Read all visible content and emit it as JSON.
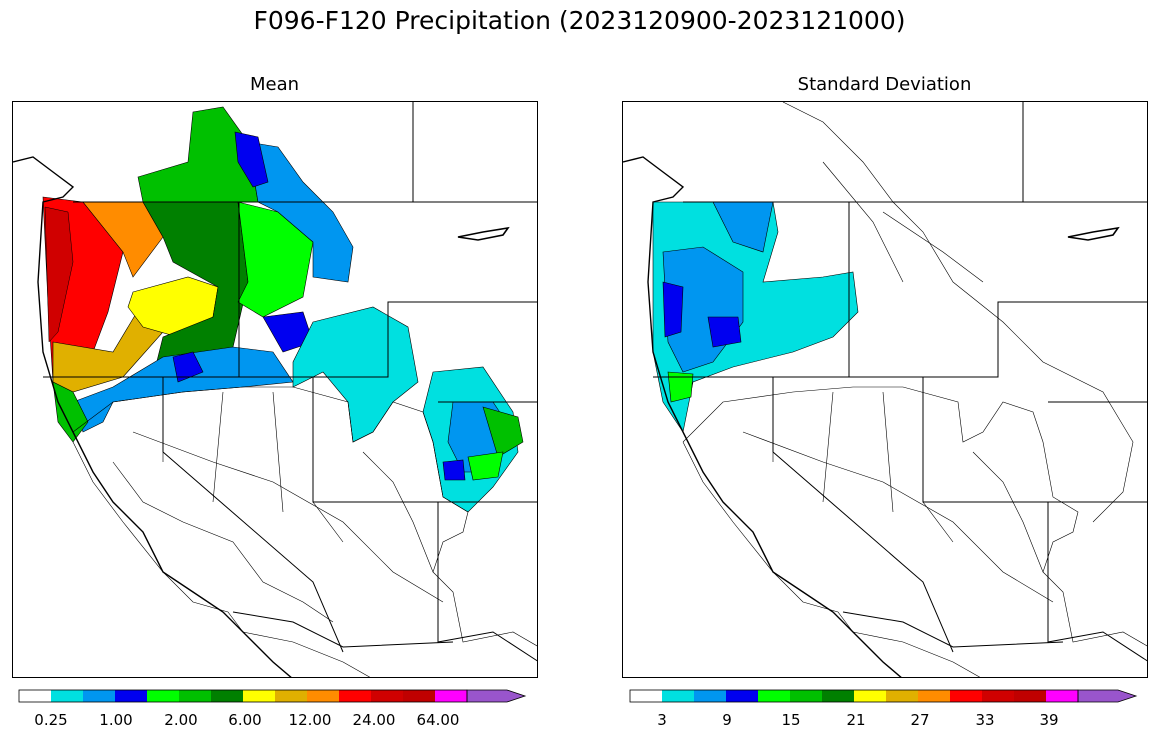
{
  "figure": {
    "title": "F096-F120 Precipitation (2023120900-2023121000)"
  },
  "panels": [
    {
      "title": "Mean",
      "colorbar": {
        "colors": [
          "#ffffff",
          "#00e0e0",
          "#0096f0",
          "#0000f0",
          "#00ff00",
          "#00c000",
          "#008000",
          "#ffff00",
          "#e0b000",
          "#ff8c00",
          "#ff0000",
          "#d00000",
          "#c00000",
          "#ff00ff",
          "#9955cc"
        ],
        "tick_labels": [
          "0.25",
          "1.00",
          "2.00",
          "6.00",
          "12.00",
          "24.00",
          "64.00"
        ],
        "extend": "max"
      }
    },
    {
      "title": "Standard Deviation",
      "colorbar": {
        "colors": [
          "#ffffff",
          "#00e0e0",
          "#0096f0",
          "#0000f0",
          "#00ff00",
          "#00c000",
          "#008000",
          "#ffff00",
          "#e0b000",
          "#ff8c00",
          "#ff0000",
          "#d00000",
          "#c00000",
          "#ff00ff",
          "#9955cc"
        ],
        "tick_labels": [
          "3",
          "9",
          "15",
          "21",
          "27",
          "33",
          "39"
        ],
        "extend": "max"
      }
    }
  ]
}
